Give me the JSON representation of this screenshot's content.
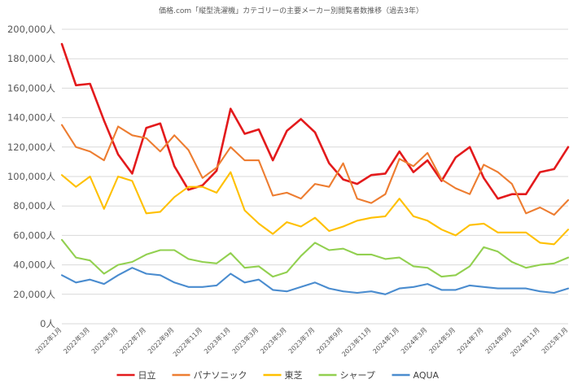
{
  "chart_data": {
    "type": "line",
    "title": "価格.com「縦型洗濯機」カテゴリーの主要メーカー別閲覧者数推移（過去3年）",
    "xlabel": "",
    "ylabel": "",
    "ylim": [
      0,
      200000
    ],
    "y_ticks": [
      "0人",
      "20,000人",
      "40,000人",
      "60,000人",
      "80,000人",
      "100,000人",
      "120,000人",
      "140,000人",
      "160,000人",
      "180,000人",
      "200,000人"
    ],
    "y_tick_values": [
      0,
      20000,
      40000,
      60000,
      80000,
      100000,
      120000,
      140000,
      160000,
      180000,
      200000
    ],
    "grid": true,
    "legend_position": "bottom",
    "categories": [
      "2022年1月",
      "2022年2月",
      "2022年3月",
      "2022年4月",
      "2022年5月",
      "2022年6月",
      "2022年7月",
      "2022年8月",
      "2022年9月",
      "2022年10月",
      "2022年11月",
      "2022年12月",
      "2023年1月",
      "2023年2月",
      "2023年3月",
      "2023年4月",
      "2023年5月",
      "2023年6月",
      "2023年7月",
      "2023年8月",
      "2023年9月",
      "2023年10月",
      "2023年11月",
      "2023年12月",
      "2024年1月",
      "2024年2月",
      "2024年3月",
      "2024年4月",
      "2024年5月",
      "2024年6月",
      "2024年7月",
      "2024年8月",
      "2024年9月",
      "2024年10月",
      "2024年11月",
      "2024年12月",
      "2025年1月"
    ],
    "x_tick_labels": [
      "2022年1月",
      "2022年3月",
      "2022年5月",
      "2022年7月",
      "2022年9月",
      "2022年11月",
      "2023年1月",
      "2023年3月",
      "2023年5月",
      "2023年7月",
      "2023年9月",
      "2023年11月",
      "2024年1月",
      "2024年3月",
      "2024年5月",
      "2024年7月",
      "2024年9月",
      "2024年11月",
      "2025年1月"
    ],
    "series": [
      {
        "name": "日立",
        "color": "#e31a1c",
        "values": [
          190000,
          162000,
          163000,
          138000,
          115000,
          102000,
          133000,
          136000,
          107000,
          91000,
          94000,
          104000,
          146000,
          129000,
          132000,
          111000,
          131000,
          139000,
          130000,
          109000,
          98000,
          95000,
          101000,
          102000,
          117000,
          103000,
          111000,
          97000,
          113000,
          120000,
          99000,
          85000,
          88000,
          88000,
          103000,
          105000,
          120000
        ]
      },
      {
        "name": "パナソニック",
        "color": "#ed7d31",
        "values": [
          135000,
          120000,
          117000,
          111000,
          134000,
          128000,
          126000,
          117000,
          128000,
          118000,
          99000,
          106000,
          120000,
          111000,
          111000,
          87000,
          89000,
          85000,
          95000,
          93000,
          109000,
          85000,
          82000,
          88000,
          112000,
          107000,
          116000,
          98000,
          92000,
          88000,
          108000,
          103000,
          95000,
          75000,
          79000,
          74000,
          84000
        ]
      },
      {
        "name": "東芝",
        "color": "#ffc000",
        "values": [
          101000,
          93000,
          100000,
          78000,
          100000,
          97000,
          75000,
          76000,
          86000,
          93000,
          93000,
          89000,
          103000,
          77000,
          68000,
          61000,
          69000,
          66000,
          72000,
          63000,
          66000,
          70000,
          72000,
          73000,
          85000,
          73000,
          70000,
          64000,
          60000,
          67000,
          68000,
          62000,
          62000,
          62000,
          55000,
          54000,
          64000
        ]
      },
      {
        "name": "シャープ",
        "color": "#92d050",
        "values": [
          57000,
          45000,
          43000,
          34000,
          40000,
          42000,
          47000,
          50000,
          50000,
          44000,
          42000,
          41000,
          48000,
          38000,
          39000,
          32000,
          35000,
          46000,
          55000,
          50000,
          51000,
          47000,
          47000,
          44000,
          45000,
          39000,
          38000,
          32000,
          33000,
          39000,
          52000,
          49000,
          42000,
          38000,
          40000,
          41000,
          45000
        ]
      },
      {
        "name": "AQUA",
        "color": "#4a8ccf",
        "values": [
          33000,
          28000,
          30000,
          27000,
          33000,
          38000,
          34000,
          33000,
          28000,
          25000,
          25000,
          26000,
          34000,
          28000,
          30000,
          23000,
          22000,
          25000,
          28000,
          24000,
          22000,
          21000,
          22000,
          20000,
          24000,
          25000,
          27000,
          23000,
          23000,
          26000,
          25000,
          24000,
          24000,
          24000,
          22000,
          21000,
          24000
        ]
      }
    ]
  }
}
